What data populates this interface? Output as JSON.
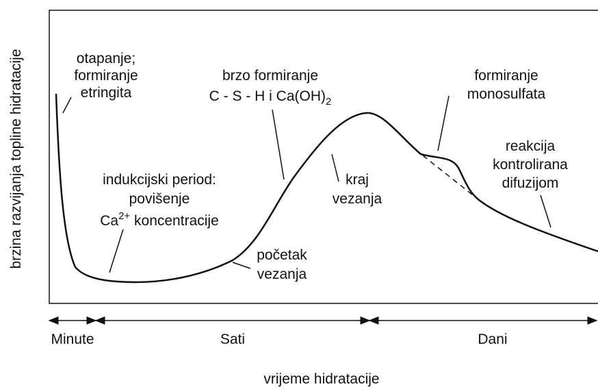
{
  "y_axis_label": "brzina razvijanja topline hidratacije",
  "x_axis_label": "vrijeme hidratacije",
  "phases": [
    "Minute",
    "Sati",
    "Dani"
  ],
  "annotations": {
    "dissolution": [
      "otapanje;",
      "formiranje",
      "etringita"
    ],
    "csh": {
      "line1": "brzo formiranje",
      "line2": "C - S - H  i  Ca(OH)",
      "line2_sub": "2"
    },
    "induction": {
      "line1": "indukcijski period:",
      "line2": "povišenje",
      "ion": "Ca",
      "ion_sup": "2+",
      "line3_rest": " koncentracije"
    },
    "initial_set": [
      "početak",
      "vezanja"
    ],
    "final_set": [
      "kraj",
      "vezanja"
    ],
    "monosulfate": [
      "formiranje",
      "monosulfata"
    ],
    "diffusion": [
      "reakcija",
      "kontrolirana",
      "difuzijom"
    ]
  }
}
